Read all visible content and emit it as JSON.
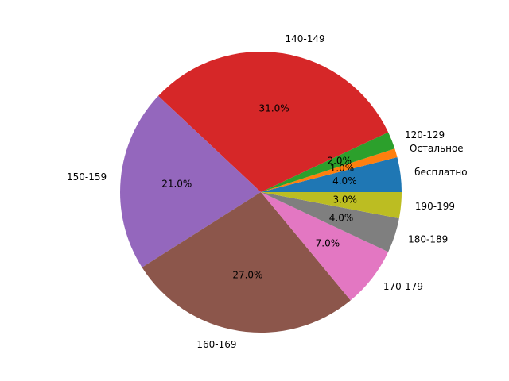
{
  "chart_data": {
    "type": "pie",
    "start_angle_deg": 0,
    "direction": "counterclockwise",
    "slices": [
      {
        "label": "бесплатно",
        "value": 4,
        "pct_label": "4.0%",
        "color": "#1f77b4"
      },
      {
        "label": "Остальное",
        "value": 1,
        "pct_label": "1.0%",
        "color": "#ff7f0e"
      },
      {
        "label": "120-129",
        "value": 2,
        "pct_label": "2.0%",
        "color": "#2ca02c"
      },
      {
        "label": "140-149",
        "value": 31,
        "pct_label": "31.0%",
        "color": "#d62728"
      },
      {
        "label": "150-159",
        "value": 21,
        "pct_label": "21.0%",
        "color": "#9467bd"
      },
      {
        "label": "160-169",
        "value": 27,
        "pct_label": "27.0%",
        "color": "#8c564b"
      },
      {
        "label": "170-179",
        "value": 7,
        "pct_label": "7.0%",
        "color": "#e377c2"
      },
      {
        "label": "180-189",
        "value": 4,
        "pct_label": "4.0%",
        "color": "#7f7f7f"
      },
      {
        "label": "190-199",
        "value": 3,
        "pct_label": "3.0%",
        "color": "#bcbd22"
      }
    ]
  }
}
